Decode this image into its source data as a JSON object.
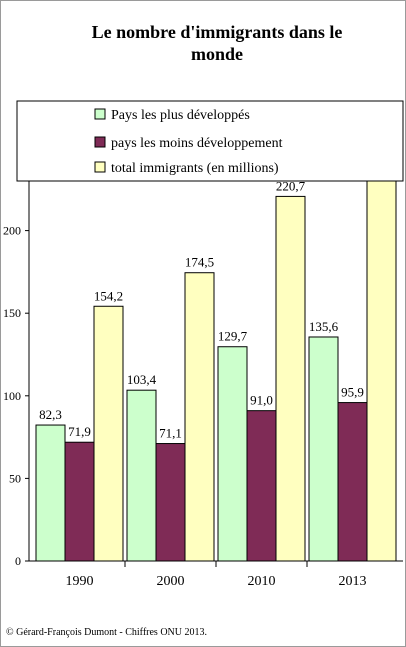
{
  "chart_data": {
    "type": "bar",
    "title_lines": [
      "Le nombre d'immigrants dans le",
      "monde"
    ],
    "categories": [
      "1990",
      "2000",
      "2010",
      "2013"
    ],
    "series": [
      {
        "name": "Pays les plus développés",
        "values": [
          82.3,
          103.4,
          129.7,
          135.6
        ],
        "labels": [
          "82,3",
          "103,4",
          "129,7",
          "135,6"
        ],
        "color": "#ccffcc"
      },
      {
        "name": "pays les moins développement",
        "values": [
          71.9,
          71.1,
          91.0,
          95.9
        ],
        "labels": [
          "71,9",
          "71,1",
          "91,0",
          "95,9"
        ],
        "color": "#7f2b56"
      },
      {
        "name": "total immigrants (en millions)",
        "values": [
          154.2,
          174.5,
          220.7,
          231.5
        ],
        "labels": [
          "154,2",
          "174,5",
          "220,7",
          ""
        ],
        "color": "#ffffc0"
      }
    ],
    "yticks": [
      "0",
      "50",
      "100",
      "150",
      "200"
    ],
    "ylim": [
      0,
      250
    ],
    "legend_position": "top",
    "grid": false
  },
  "footer": "© Gérard-François Dumont - Chiffres ONU 2013."
}
